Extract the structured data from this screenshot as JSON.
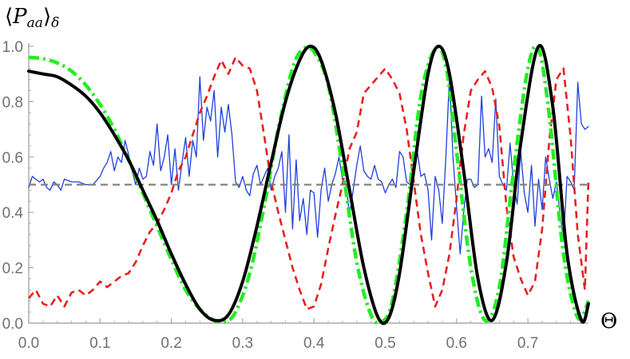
{
  "chart_data": {
    "type": "line",
    "ylabel": "⟨P_aa⟩_δ",
    "ylabel_parts": {
      "open": "⟨",
      "main": "P",
      "sub": "aa",
      "close": "⟩",
      "outer_sub": "δ"
    },
    "xlabel": "Θ",
    "xlim": [
      0,
      0.785
    ],
    "ylim": [
      0,
      1.0
    ],
    "xticks": [
      "0.0",
      "0.1",
      "0.2",
      "0.3",
      "0.4",
      "0.5",
      "0.6",
      "0.7"
    ],
    "yticks": [
      "0.0",
      "0.2",
      "0.4",
      "0.6",
      "0.8",
      "1.0"
    ],
    "grid": false,
    "series": [
      {
        "style": "solid-thick",
        "color": "#000000",
        "x": [
          0.0,
          0.02,
          0.04,
          0.06,
          0.08,
          0.1,
          0.12,
          0.14,
          0.16,
          0.18,
          0.2,
          0.22,
          0.24,
          0.26,
          0.28,
          0.3,
          0.32,
          0.34,
          0.36,
          0.38,
          0.395,
          0.41,
          0.43,
          0.45,
          0.47,
          0.49,
          0.505,
          0.52,
          0.54,
          0.56,
          0.575,
          0.59,
          0.61,
          0.63,
          0.65,
          0.67,
          0.69,
          0.715,
          0.735,
          0.755,
          0.775,
          0.785
        ],
        "y": [
          0.91,
          0.9,
          0.89,
          0.86,
          0.82,
          0.76,
          0.68,
          0.59,
          0.48,
          0.37,
          0.25,
          0.14,
          0.05,
          0.01,
          0.03,
          0.15,
          0.35,
          0.58,
          0.8,
          0.95,
          1.0,
          0.95,
          0.76,
          0.48,
          0.2,
          0.02,
          0.02,
          0.18,
          0.55,
          0.9,
          1.0,
          0.9,
          0.55,
          0.16,
          0.01,
          0.22,
          0.65,
          1.0,
          0.78,
          0.25,
          0.01,
          0.07
        ]
      },
      {
        "style": "dash-dot",
        "color": "#22ee22",
        "x": [
          0.0,
          0.02,
          0.04,
          0.06,
          0.08,
          0.1,
          0.12,
          0.14,
          0.16,
          0.18,
          0.2,
          0.22,
          0.24,
          0.26,
          0.275,
          0.29,
          0.31,
          0.33,
          0.35,
          0.37,
          0.385,
          0.4,
          0.42,
          0.44,
          0.46,
          0.48,
          0.495,
          0.51,
          0.53,
          0.55,
          0.57,
          0.585,
          0.6,
          0.62,
          0.64,
          0.66,
          0.68,
          0.7,
          0.715,
          0.73,
          0.75,
          0.77,
          0.785
        ],
        "y": [
          0.96,
          0.955,
          0.94,
          0.91,
          0.86,
          0.79,
          0.7,
          0.59,
          0.47,
          0.35,
          0.23,
          0.12,
          0.05,
          0.01,
          0.005,
          0.04,
          0.18,
          0.42,
          0.7,
          0.92,
          0.99,
          0.98,
          0.86,
          0.56,
          0.22,
          0.03,
          0.005,
          0.08,
          0.4,
          0.82,
          0.99,
          0.93,
          0.62,
          0.2,
          0.01,
          0.13,
          0.55,
          0.92,
          0.99,
          0.75,
          0.25,
          0.02,
          0.08
        ]
      },
      {
        "style": "dashed",
        "color": "#e82020",
        "x": [
          0.0,
          0.01,
          0.02,
          0.03,
          0.04,
          0.05,
          0.06,
          0.07,
          0.08,
          0.09,
          0.1,
          0.11,
          0.12,
          0.13,
          0.14,
          0.15,
          0.16,
          0.17,
          0.18,
          0.19,
          0.2,
          0.21,
          0.22,
          0.23,
          0.24,
          0.25,
          0.26,
          0.27,
          0.28,
          0.29,
          0.3,
          0.31,
          0.32,
          0.33,
          0.34,
          0.35,
          0.36,
          0.37,
          0.38,
          0.39,
          0.4,
          0.41,
          0.42,
          0.43,
          0.44,
          0.45,
          0.46,
          0.47,
          0.48,
          0.49,
          0.5,
          0.51,
          0.52,
          0.53,
          0.54,
          0.55,
          0.56,
          0.57,
          0.58,
          0.59,
          0.6,
          0.61,
          0.62,
          0.63,
          0.64,
          0.65,
          0.66,
          0.67,
          0.68,
          0.69,
          0.7,
          0.71,
          0.72,
          0.73,
          0.74,
          0.75,
          0.76,
          0.77,
          0.78,
          0.785
        ],
        "y": [
          0.09,
          0.12,
          0.07,
          0.06,
          0.1,
          0.06,
          0.11,
          0.12,
          0.1,
          0.12,
          0.15,
          0.13,
          0.15,
          0.17,
          0.18,
          0.22,
          0.28,
          0.33,
          0.36,
          0.41,
          0.47,
          0.55,
          0.6,
          0.68,
          0.76,
          0.82,
          0.89,
          0.95,
          0.9,
          0.96,
          0.93,
          0.92,
          0.84,
          0.68,
          0.51,
          0.4,
          0.3,
          0.2,
          0.12,
          0.05,
          0.06,
          0.14,
          0.27,
          0.39,
          0.5,
          0.63,
          0.69,
          0.83,
          0.86,
          0.89,
          0.92,
          0.88,
          0.83,
          0.7,
          0.51,
          0.32,
          0.18,
          0.06,
          0.12,
          0.25,
          0.45,
          0.68,
          0.84,
          0.88,
          0.91,
          0.85,
          0.71,
          0.42,
          0.24,
          0.16,
          0.1,
          0.15,
          0.34,
          0.66,
          0.88,
          0.92,
          0.67,
          0.32,
          0.12,
          0.52
        ]
      },
      {
        "style": "solid-thin",
        "color": "#1f3fdd",
        "x": [
          0.0,
          0.005,
          0.01,
          0.015,
          0.02,
          0.025,
          0.03,
          0.035,
          0.04,
          0.045,
          0.05,
          0.06,
          0.07,
          0.08,
          0.09,
          0.1,
          0.105,
          0.11,
          0.115,
          0.12,
          0.125,
          0.13,
          0.135,
          0.14,
          0.145,
          0.15,
          0.155,
          0.16,
          0.165,
          0.17,
          0.175,
          0.18,
          0.185,
          0.19,
          0.195,
          0.2,
          0.205,
          0.21,
          0.215,
          0.22,
          0.225,
          0.23,
          0.235,
          0.24,
          0.245,
          0.25,
          0.255,
          0.26,
          0.265,
          0.27,
          0.275,
          0.28,
          0.285,
          0.29,
          0.295,
          0.3,
          0.305,
          0.31,
          0.315,
          0.32,
          0.325,
          0.33,
          0.335,
          0.34,
          0.345,
          0.35,
          0.355,
          0.36,
          0.365,
          0.37,
          0.375,
          0.38,
          0.385,
          0.39,
          0.395,
          0.4,
          0.405,
          0.41,
          0.415,
          0.42,
          0.425,
          0.43,
          0.435,
          0.44,
          0.445,
          0.45,
          0.455,
          0.46,
          0.465,
          0.47,
          0.475,
          0.48,
          0.485,
          0.49,
          0.495,
          0.5,
          0.505,
          0.51,
          0.515,
          0.52,
          0.525,
          0.53,
          0.535,
          0.54,
          0.545,
          0.55,
          0.555,
          0.56,
          0.565,
          0.57,
          0.575,
          0.58,
          0.585,
          0.59,
          0.595,
          0.6,
          0.605,
          0.61,
          0.615,
          0.62,
          0.625,
          0.63,
          0.635,
          0.64,
          0.645,
          0.65,
          0.655,
          0.66,
          0.665,
          0.67,
          0.675,
          0.68,
          0.685,
          0.69,
          0.695,
          0.7,
          0.705,
          0.71,
          0.715,
          0.72,
          0.725,
          0.73,
          0.735,
          0.74,
          0.745,
          0.75,
          0.755,
          0.76,
          0.765,
          0.77,
          0.775,
          0.78,
          0.785
        ],
        "y": [
          0.49,
          0.53,
          0.52,
          0.51,
          0.52,
          0.49,
          0.48,
          0.51,
          0.5,
          0.48,
          0.52,
          0.51,
          0.51,
          0.5,
          0.5,
          0.53,
          0.56,
          0.58,
          0.62,
          0.55,
          0.6,
          0.58,
          0.66,
          0.61,
          0.55,
          0.5,
          0.56,
          0.52,
          0.53,
          0.62,
          0.57,
          0.72,
          0.55,
          0.6,
          0.68,
          0.5,
          0.63,
          0.48,
          0.58,
          0.67,
          0.53,
          0.66,
          0.6,
          0.89,
          0.66,
          0.78,
          0.73,
          0.84,
          0.6,
          0.78,
          0.69,
          0.79,
          0.68,
          0.51,
          0.49,
          0.53,
          0.48,
          0.46,
          0.54,
          0.57,
          0.5,
          0.53,
          0.56,
          0.48,
          0.53,
          0.56,
          0.62,
          0.4,
          0.68,
          0.34,
          0.59,
          0.37,
          0.45,
          0.32,
          0.48,
          0.47,
          0.31,
          0.48,
          0.56,
          0.44,
          0.5,
          0.54,
          0.6,
          0.52,
          0.5,
          0.39,
          0.48,
          0.57,
          0.64,
          0.55,
          0.53,
          0.52,
          0.57,
          0.52,
          0.51,
          0.47,
          0.5,
          0.52,
          0.49,
          0.62,
          0.6,
          0.51,
          0.5,
          0.59,
          0.62,
          0.53,
          0.54,
          0.48,
          0.3,
          0.53,
          0.48,
          0.36,
          0.6,
          0.89,
          0.6,
          0.42,
          0.25,
          0.4,
          0.52,
          0.52,
          0.49,
          0.5,
          0.82,
          0.6,
          0.63,
          0.58,
          0.81,
          0.53,
          0.5,
          0.48,
          0.65,
          0.5,
          0.43,
          0.62,
          0.47,
          0.4,
          0.57,
          0.35,
          0.52,
          0.41,
          0.6,
          0.52,
          0.45,
          0.51,
          0.4,
          0.3,
          0.53,
          0.51,
          0.48,
          0.87,
          0.72,
          0.7,
          0.71
        ]
      },
      {
        "style": "dashed-gray",
        "color": "#808080",
        "x": [
          0.0,
          0.785
        ],
        "y": [
          0.5,
          0.5
        ]
      }
    ]
  }
}
